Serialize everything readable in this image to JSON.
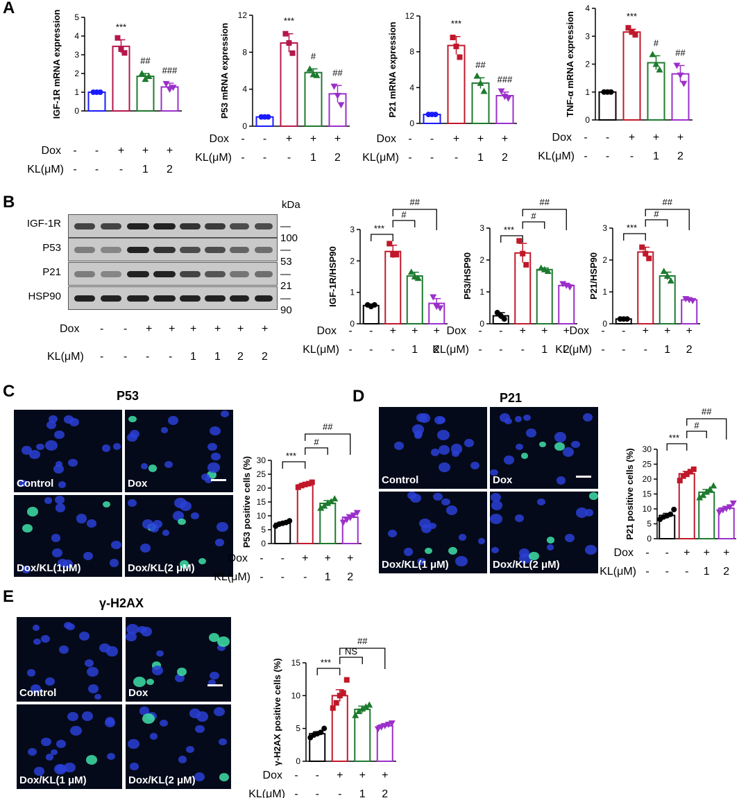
{
  "panels": {
    "A": "A",
    "B": "B",
    "C": "C",
    "D": "D",
    "E": "E"
  },
  "titles": {
    "C": "P53",
    "D": "P21",
    "E": "γ-H2AX"
  },
  "image_labels": {
    "C": [
      "Control",
      "Dox",
      "Dox/KL(1μM)",
      "Dox/KL(2 μM)"
    ],
    "D": [
      "Control",
      "Dox",
      "Dox/KL(1 μM)",
      "Dox/KL(2 μM)"
    ],
    "E": [
      "Control",
      "Dox",
      "Dox/KL(1 μM)",
      "Dox/KL(2 μM)"
    ]
  },
  "blot": {
    "kda_label": "kDa",
    "rows": [
      {
        "name": "IGF-1R",
        "kda": "100"
      },
      {
        "name": "P53",
        "kda": "53"
      },
      {
        "name": "P21",
        "kda": "21"
      },
      {
        "name": "HSP90",
        "kda": "90"
      }
    ],
    "dox_label": "Dox",
    "kl_label": "KL(μM)",
    "dox": [
      "-",
      "-",
      "+",
      "+",
      "+",
      "+",
      "+",
      "+"
    ],
    "kl": [
      "-",
      "-",
      "-",
      "-",
      "1",
      "1",
      "2",
      "2"
    ]
  },
  "colors": {
    "control": "#1a1aff",
    "control_black": "#000000",
    "dox": "#b5174b",
    "dox_red": "#c0182a",
    "kl1": "#1d7a2e",
    "kl2": "#9b2fc9"
  },
  "chart_data": [
    {
      "id": "A1",
      "type": "bar",
      "ylabel": "IGF-1R mRNA expression",
      "ylim": [
        0,
        5
      ],
      "yticks": [
        "0",
        "1",
        "2",
        "3",
        "4",
        "5"
      ],
      "categories": [
        "Control",
        "Dox",
        "Dox/KL1",
        "Dox/KL2"
      ],
      "values": [
        1.0,
        3.45,
        1.85,
        1.28
      ],
      "errors": [
        0.03,
        0.35,
        0.15,
        0.2
      ],
      "points": [
        [
          1.0,
          1.0,
          1.0
        ],
        [
          3.9,
          3.3,
          3.1
        ],
        [
          2.0,
          1.7,
          1.85
        ],
        [
          1.45,
          1.15,
          1.25
        ]
      ],
      "sig": [
        "",
        "***",
        "##",
        "###"
      ],
      "dox": [
        "-",
        "+",
        "+",
        "+"
      ],
      "kl": [
        "-",
        "-",
        "1",
        "2"
      ],
      "colors": [
        "#1a1aff",
        "#b5174b",
        "#1d7a2e",
        "#9b2fc9"
      ]
    },
    {
      "id": "A2",
      "type": "bar",
      "ylabel": "P53 mRNA expression",
      "ylim": [
        0,
        12
      ],
      "yticks": [
        "0",
        "4",
        "8",
        "12"
      ],
      "categories": [
        "Control",
        "Dox",
        "Dox/KL1",
        "Dox/KL2"
      ],
      "values": [
        1.0,
        9.0,
        5.8,
        3.5
      ],
      "errors": [
        0.05,
        1.0,
        0.4,
        0.9
      ],
      "points": [
        [
          1.0,
          1.0,
          1.0
        ],
        [
          10.0,
          9.0,
          7.9
        ],
        [
          6.2,
          5.6,
          5.5
        ],
        [
          4.3,
          3.3,
          2.3
        ]
      ],
      "sig": [
        "",
        "***",
        "#",
        "##"
      ],
      "dox": [
        "-",
        "+",
        "+",
        "+"
      ],
      "kl": [
        "-",
        "-",
        "1",
        "2"
      ],
      "colors": [
        "#1a1aff",
        "#b5174b",
        "#1d7a2e",
        "#9b2fc9"
      ]
    },
    {
      "id": "A3",
      "type": "bar",
      "ylabel": "P21 mRNA expression",
      "ylim": [
        0,
        12
      ],
      "yticks": [
        "0",
        "4",
        "8",
        "12"
      ],
      "categories": [
        "Control",
        "Dox",
        "Dox/KL1",
        "Dox/KL2"
      ],
      "values": [
        1.0,
        8.7,
        4.5,
        3.1
      ],
      "errors": [
        0.05,
        1.0,
        0.6,
        0.4
      ],
      "points": [
        [
          1.0,
          1.0,
          1.0
        ],
        [
          9.6,
          8.6,
          7.4
        ],
        [
          5.3,
          4.5,
          3.6
        ],
        [
          3.6,
          3.0,
          2.8
        ]
      ],
      "sig": [
        "",
        "***",
        "##",
        "###"
      ],
      "dox": [
        "-",
        "+",
        "+",
        "+"
      ],
      "kl": [
        "-",
        "-",
        "1",
        "2"
      ],
      "colors": [
        "#1a1aff",
        "#c0182a",
        "#1d7a2e",
        "#9b2fc9"
      ]
    },
    {
      "id": "A4",
      "type": "bar",
      "ylabel": "TNF-α mRNA expression",
      "ylim": [
        0,
        4
      ],
      "yticks": [
        "0",
        "1",
        "2",
        "3",
        "4"
      ],
      "categories": [
        "Control",
        "Dox",
        "Dox/KL1",
        "Dox/KL2"
      ],
      "values": [
        1.0,
        3.15,
        2.05,
        1.65
      ],
      "errors": [
        0.02,
        0.1,
        0.25,
        0.3
      ],
      "points": [
        [
          1.0,
          1.0,
          1.0
        ],
        [
          3.3,
          3.15,
          3.05
        ],
        [
          2.35,
          2.0,
          1.8
        ],
        [
          1.95,
          1.6,
          1.3
        ]
      ],
      "sig": [
        "",
        "***",
        "#",
        "##"
      ],
      "dox": [
        "-",
        "+",
        "+",
        "+"
      ],
      "kl": [
        "-",
        "-",
        "1",
        "2"
      ],
      "colors": [
        "#000000",
        "#c0182a",
        "#1d7a2e",
        "#9b2fc9"
      ]
    },
    {
      "id": "B1",
      "type": "bar",
      "ylabel": "IGF-1R/HSP90",
      "ylim": [
        0,
        3
      ],
      "yticks": [
        "0",
        "1",
        "2",
        "3"
      ],
      "categories": [
        "Control",
        "Dox",
        "Dox/KL1",
        "Dox/KL2"
      ],
      "values": [
        0.58,
        2.3,
        1.52,
        0.65
      ],
      "errors": [
        0.05,
        0.2,
        0.12,
        0.15
      ],
      "points": [
        [
          0.6,
          0.55,
          0.6
        ],
        [
          2.55,
          2.2,
          2.2
        ],
        [
          1.65,
          1.5,
          1.45
        ],
        [
          0.85,
          0.55,
          0.5
        ]
      ],
      "sig": [
        "***",
        "#",
        "##"
      ],
      "dox": [
        "-",
        "+",
        "+",
        "+"
      ],
      "kl": [
        "-",
        "-",
        "1",
        "2"
      ],
      "colors": [
        "#000000",
        "#c0182a",
        "#1d7a2e",
        "#9b2fc9"
      ]
    },
    {
      "id": "B2",
      "type": "bar",
      "ylabel": "P53/HSP90",
      "ylim": [
        0,
        3
      ],
      "yticks": [
        "0",
        "1",
        "2",
        "3"
      ],
      "categories": [
        "Control",
        "Dox",
        "Dox/KL1",
        "Dox/KL2"
      ],
      "values": [
        0.25,
        2.22,
        1.7,
        1.2
      ],
      "errors": [
        0.1,
        0.3,
        0.05,
        0.05
      ],
      "points": [
        [
          0.35,
          0.25,
          0.15
        ],
        [
          2.6,
          2.2,
          1.85
        ],
        [
          1.75,
          1.7,
          1.65
        ],
        [
          1.25,
          1.2,
          1.15
        ]
      ],
      "sig": [
        "***",
        "#",
        "##"
      ],
      "dox": [
        "-",
        "+",
        "+",
        "+"
      ],
      "kl": [
        "-",
        "-",
        "1",
        "2"
      ],
      "colors": [
        "#000000",
        "#c0182a",
        "#1d7a2e",
        "#9b2fc9"
      ]
    },
    {
      "id": "B3",
      "type": "bar",
      "ylabel": "P21/HSP90",
      "ylim": [
        0,
        3
      ],
      "yticks": [
        "0",
        "1",
        "2",
        "3"
      ],
      "categories": [
        "Control",
        "Dox",
        "Dox/KL1",
        "Dox/KL2"
      ],
      "values": [
        0.15,
        2.25,
        1.5,
        0.75
      ],
      "errors": [
        0.02,
        0.15,
        0.12,
        0.03
      ],
      "points": [
        [
          0.15,
          0.15,
          0.15
        ],
        [
          2.4,
          2.2,
          2.05
        ],
        [
          1.65,
          1.5,
          1.35
        ],
        [
          0.78,
          0.75,
          0.72
        ]
      ],
      "sig": [
        "***",
        "#",
        "##"
      ],
      "dox": [
        "-",
        "+",
        "+",
        "+"
      ],
      "kl": [
        "-",
        "-",
        "1",
        "2"
      ],
      "colors": [
        "#000000",
        "#c0182a",
        "#1d7a2e",
        "#9b2fc9"
      ]
    },
    {
      "id": "C1",
      "type": "bar",
      "ylabel": "P53 positive cells (%)",
      "ylim": [
        0,
        30
      ],
      "yticks": [
        "0",
        "5",
        "10",
        "15",
        "20",
        "25",
        "30"
      ],
      "categories": [
        "Control",
        "Dox",
        "Dox/KL1",
        "Dox/KL2"
      ],
      "values": [
        7.3,
        21.2,
        14.5,
        9.5
      ],
      "errors": [
        0.5,
        0.6,
        1.0,
        0.9
      ],
      "points": [
        [
          6.3,
          7.0,
          7.3,
          7.6,
          8.2
        ],
        [
          20.3,
          20.9,
          21.3,
          21.6,
          22.1
        ],
        [
          12.8,
          13.6,
          14.6,
          15.2,
          16.2
        ],
        [
          7.6,
          8.6,
          9.3,
          10.2,
          11.1
        ]
      ],
      "sig": [
        "***",
        "#",
        "##"
      ],
      "dox": [
        "-",
        "+",
        "+",
        "+"
      ],
      "kl": [
        "-",
        "-",
        "1",
        "2"
      ],
      "colors": [
        "#000000",
        "#c0182a",
        "#1d7a2e",
        "#9b2fc9"
      ]
    },
    {
      "id": "D1",
      "type": "bar",
      "ylabel": "P21 positive cells (%)",
      "ylim": [
        0,
        30
      ],
      "yticks": [
        "0",
        "5",
        "10",
        "15",
        "20",
        "25",
        "30"
      ],
      "categories": [
        "Control",
        "Dox",
        "Dox/KL1",
        "Dox/KL2"
      ],
      "values": [
        7.8,
        21.8,
        15.6,
        10.2
      ],
      "errors": [
        0.7,
        0.8,
        0.9,
        0.6
      ],
      "points": [
        [
          6.5,
          7.3,
          7.7,
          8.2,
          9.8
        ],
        [
          19.5,
          21.0,
          21.6,
          22.5,
          23.3
        ],
        [
          13.8,
          14.6,
          15.7,
          16.6,
          17.8
        ],
        [
          8.9,
          9.6,
          10.1,
          10.6,
          11.9
        ]
      ],
      "sig": [
        "***",
        "#",
        "##"
      ],
      "dox": [
        "-",
        "+",
        "+",
        "+"
      ],
      "kl": [
        "-",
        "-",
        "1",
        "2"
      ],
      "colors": [
        "#000000",
        "#c0182a",
        "#1d7a2e",
        "#9b2fc9"
      ]
    },
    {
      "id": "E1",
      "type": "bar",
      "ylabel": "γ-H2AX positive cells (%)",
      "ylim": [
        0,
        15
      ],
      "yticks": [
        "0",
        "5",
        "10",
        "15"
      ],
      "categories": [
        "Control",
        "Dox",
        "Dox/KL1",
        "Dox/KL2"
      ],
      "values": [
        4.2,
        10.0,
        7.9,
        5.4
      ],
      "errors": [
        0.3,
        0.9,
        0.5,
        0.3
      ],
      "points": [
        [
          3.6,
          4.0,
          4.2,
          4.4,
          5.0
        ],
        [
          8.1,
          8.9,
          10.0,
          10.4,
          12.4
        ],
        [
          7.0,
          7.6,
          8.0,
          8.3,
          8.6
        ],
        [
          4.9,
          5.2,
          5.4,
          5.6,
          5.8
        ]
      ],
      "sig": [
        "***",
        "NS",
        "##"
      ],
      "dox": [
        "-",
        "+",
        "+",
        "+"
      ],
      "kl": [
        "-",
        "-",
        "1",
        "2"
      ],
      "colors": [
        "#000000",
        "#c0182a",
        "#1d7a2e",
        "#9b2fc9"
      ]
    }
  ]
}
